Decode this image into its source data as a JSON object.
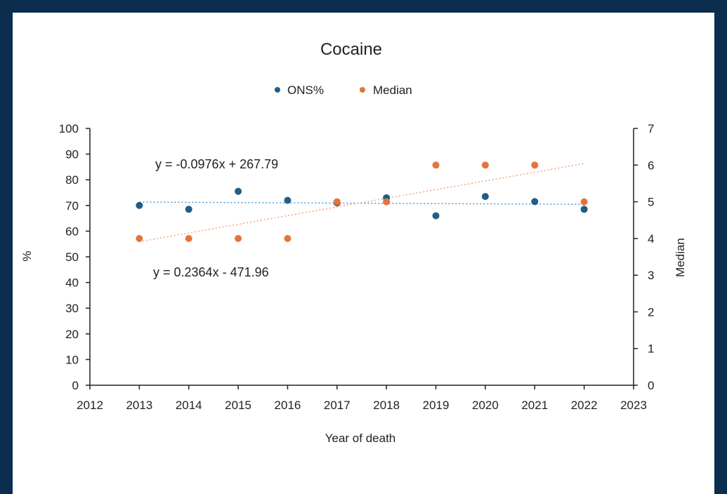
{
  "chart_data": {
    "type": "scatter",
    "title": "Cocaine",
    "xlabel": "Year of death",
    "ylabel": "%",
    "y2label": "Median",
    "xlim": [
      2012,
      2023
    ],
    "ylim": [
      0,
      100
    ],
    "y2lim": [
      0,
      7
    ],
    "x_ticks": [
      2012,
      2013,
      2014,
      2015,
      2016,
      2017,
      2018,
      2019,
      2020,
      2021,
      2022,
      2023
    ],
    "y_ticks": [
      0,
      10,
      20,
      30,
      40,
      50,
      60,
      70,
      80,
      90,
      100
    ],
    "y2_ticks": [
      0,
      1,
      2,
      3,
      4,
      5,
      6,
      7
    ],
    "grid": false,
    "legend_position": "top",
    "series": [
      {
        "name": "ONS%",
        "axis": "left",
        "color": "#1f5f86",
        "x": [
          2013,
          2014,
          2015,
          2016,
          2017,
          2018,
          2019,
          2020,
          2021,
          2022
        ],
        "y": [
          70,
          68.5,
          75.5,
          72,
          71,
          73,
          66,
          73.5,
          71.5,
          68.5
        ],
        "trendline": {
          "slope": -0.0976,
          "intercept": 267.79,
          "color": "#4a9bd0",
          "label": "y = -0.0976x + 267.79"
        }
      },
      {
        "name": "Median",
        "axis": "right",
        "color": "#e8733a",
        "x": [
          2013,
          2014,
          2015,
          2016,
          2017,
          2018,
          2019,
          2020,
          2021,
          2022
        ],
        "y": [
          4,
          4,
          4,
          4,
          5,
          5,
          6,
          6,
          6,
          5
        ],
        "trendline": {
          "slope": 0.2364,
          "intercept": -471.96,
          "color": "#f0a47a",
          "label": "y = 0.2364x - 471.96"
        }
      }
    ]
  }
}
